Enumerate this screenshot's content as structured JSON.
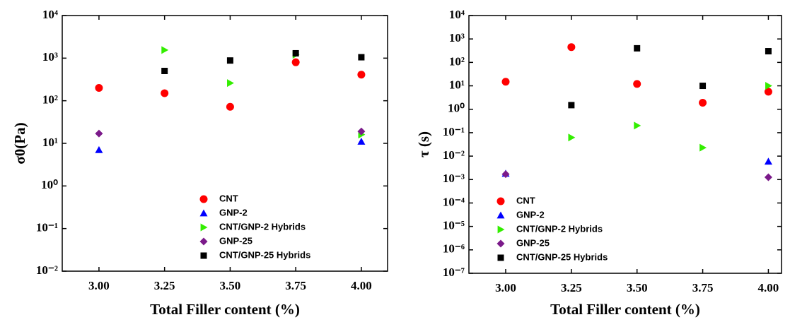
{
  "chart_data": [
    {
      "type": "scatter",
      "y_label": "σ0(Pa)",
      "x_label": "Total Filler content (%)",
      "xlim": [
        2.86,
        4.1
      ],
      "xticks": [
        {
          "value": 3,
          "label": "3.00"
        },
        {
          "value": 3.25,
          "label": "3.25"
        },
        {
          "value": 3.5,
          "label": "3.50"
        },
        {
          "value": 3.75,
          "label": "3.75"
        },
        {
          "value": 4,
          "label": "4.00"
        }
      ],
      "ylim": [
        0.01,
        10000
      ],
      "ylog": true,
      "yticks": [
        {
          "value": 0.01,
          "label": "10⁻²"
        },
        {
          "value": 0.1,
          "label": "10⁻¹"
        },
        {
          "value": 1,
          "label": "10⁰"
        },
        {
          "value": 10,
          "label": "10¹"
        },
        {
          "value": 100,
          "label": "10²"
        },
        {
          "value": 1000,
          "label": "10³"
        },
        {
          "value": 10000,
          "label": "10⁴"
        }
      ],
      "legend": "lower center",
      "x": [
        3,
        3.25,
        3.5,
        3.75,
        4
      ],
      "series": [
        {
          "name": "CNT",
          "color": "#ff0000",
          "marker": "circle",
          "values": [
            200,
            150,
            72,
            800,
            410
          ]
        },
        {
          "name": "GNP-2",
          "color": "#0000ff",
          "marker": "triangle-up",
          "values": [
            7,
            null,
            null,
            null,
            11
          ]
        },
        {
          "name": "CNT/GNP-2 Hybrids",
          "color": "#33ee00",
          "marker": "triangle-right",
          "values": [
            null,
            1550,
            260,
            1200,
            16
          ]
        },
        {
          "name": "GNP-25",
          "color": "#7b1a8a",
          "marker": "diamond",
          "values": [
            17,
            null,
            null,
            null,
            19
          ]
        },
        {
          "name": "CNT/GNP-25 Hybrids",
          "color": "#000000",
          "marker": "square",
          "values": [
            null,
            500,
            880,
            1300,
            1050
          ]
        }
      ]
    },
    {
      "type": "scatter",
      "y_label": "τ (s)",
      "x_label": "Total Filler content (%)",
      "xlim": [
        2.86,
        4.05
      ],
      "xticks": [
        {
          "value": 3,
          "label": "3.00"
        },
        {
          "value": 3.25,
          "label": "3.25"
        },
        {
          "value": 3.5,
          "label": "3.50"
        },
        {
          "value": 3.75,
          "label": "3.75"
        },
        {
          "value": 4,
          "label": "4.00"
        }
      ],
      "ylim": [
        1e-07,
        10000
      ],
      "ylog": true,
      "yticks": [
        {
          "value": 1e-07,
          "label": "10⁻⁷"
        },
        {
          "value": 1e-06,
          "label": "10⁻⁶"
        },
        {
          "value": 1e-05,
          "label": "10⁻⁵"
        },
        {
          "value": 0.0001,
          "label": "10⁻⁴"
        },
        {
          "value": 0.001,
          "label": "10⁻³"
        },
        {
          "value": 0.01,
          "label": "10⁻²"
        },
        {
          "value": 0.1,
          "label": "10⁻¹"
        },
        {
          "value": 1,
          "label": "10⁰"
        },
        {
          "value": 10,
          "label": "10¹"
        },
        {
          "value": 100,
          "label": "10²"
        },
        {
          "value": 1000,
          "label": "10³"
        },
        {
          "value": 10000,
          "label": "10⁴"
        }
      ],
      "legend": "lower left",
      "x": [
        3,
        3.25,
        3.5,
        3.75,
        4
      ],
      "series": [
        {
          "name": "CNT",
          "color": "#ff0000",
          "marker": "circle",
          "values": [
            15,
            450,
            12,
            1.9,
            5.6
          ]
        },
        {
          "name": "GNP-2",
          "color": "#0000ff",
          "marker": "triangle-up",
          "values": [
            0.0018,
            null,
            null,
            null,
            0.0059
          ]
        },
        {
          "name": "CNT/GNP-2 Hybrids",
          "color": "#33ee00",
          "marker": "triangle-right",
          "values": [
            null,
            0.062,
            0.2,
            0.023,
            10
          ]
        },
        {
          "name": "GNP-25",
          "color": "#7b1a8a",
          "marker": "diamond",
          "values": [
            0.0017,
            null,
            null,
            null,
            0.00125
          ]
        },
        {
          "name": "CNT/GNP-25 Hybrids",
          "color": "#000000",
          "marker": "square",
          "values": [
            null,
            1.5,
            400,
            10,
            300
          ]
        }
      ]
    }
  ]
}
